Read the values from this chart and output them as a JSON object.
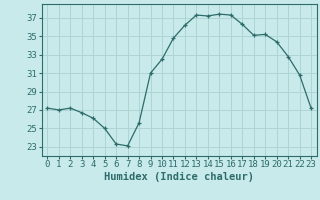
{
  "x": [
    0,
    1,
    2,
    3,
    4,
    5,
    6,
    7,
    8,
    9,
    10,
    11,
    12,
    13,
    14,
    15,
    16,
    17,
    18,
    19,
    20,
    21,
    22,
    23
  ],
  "y": [
    27.2,
    27.0,
    27.2,
    26.7,
    26.1,
    25.0,
    23.3,
    23.1,
    25.6,
    31.0,
    32.5,
    34.8,
    36.2,
    37.3,
    37.2,
    37.4,
    37.3,
    36.3,
    35.1,
    35.2,
    34.4,
    32.8,
    30.8,
    27.2
  ],
  "line_color": "#2e6b6b",
  "marker": "+",
  "bg_color": "#c8eaea",
  "grid_color": "#aed4d4",
  "tick_color": "#2e6b6b",
  "xlabel": "Humidex (Indice chaleur)",
  "xlim": [
    -0.5,
    23.5
  ],
  "ylim": [
    22.0,
    38.5
  ],
  "yticks": [
    23,
    25,
    27,
    29,
    31,
    33,
    35,
    37
  ],
  "xticks": [
    0,
    1,
    2,
    3,
    4,
    5,
    6,
    7,
    8,
    9,
    10,
    11,
    12,
    13,
    14,
    15,
    16,
    17,
    18,
    19,
    20,
    21,
    22,
    23
  ],
  "xtick_labels": [
    "0",
    "1",
    "2",
    "3",
    "4",
    "5",
    "6",
    "7",
    "8",
    "9",
    "10",
    "11",
    "12",
    "13",
    "14",
    "15",
    "16",
    "17",
    "18",
    "19",
    "20",
    "21",
    "22",
    "23"
  ],
  "font_size": 6.5,
  "xlabel_fontsize": 7.5
}
